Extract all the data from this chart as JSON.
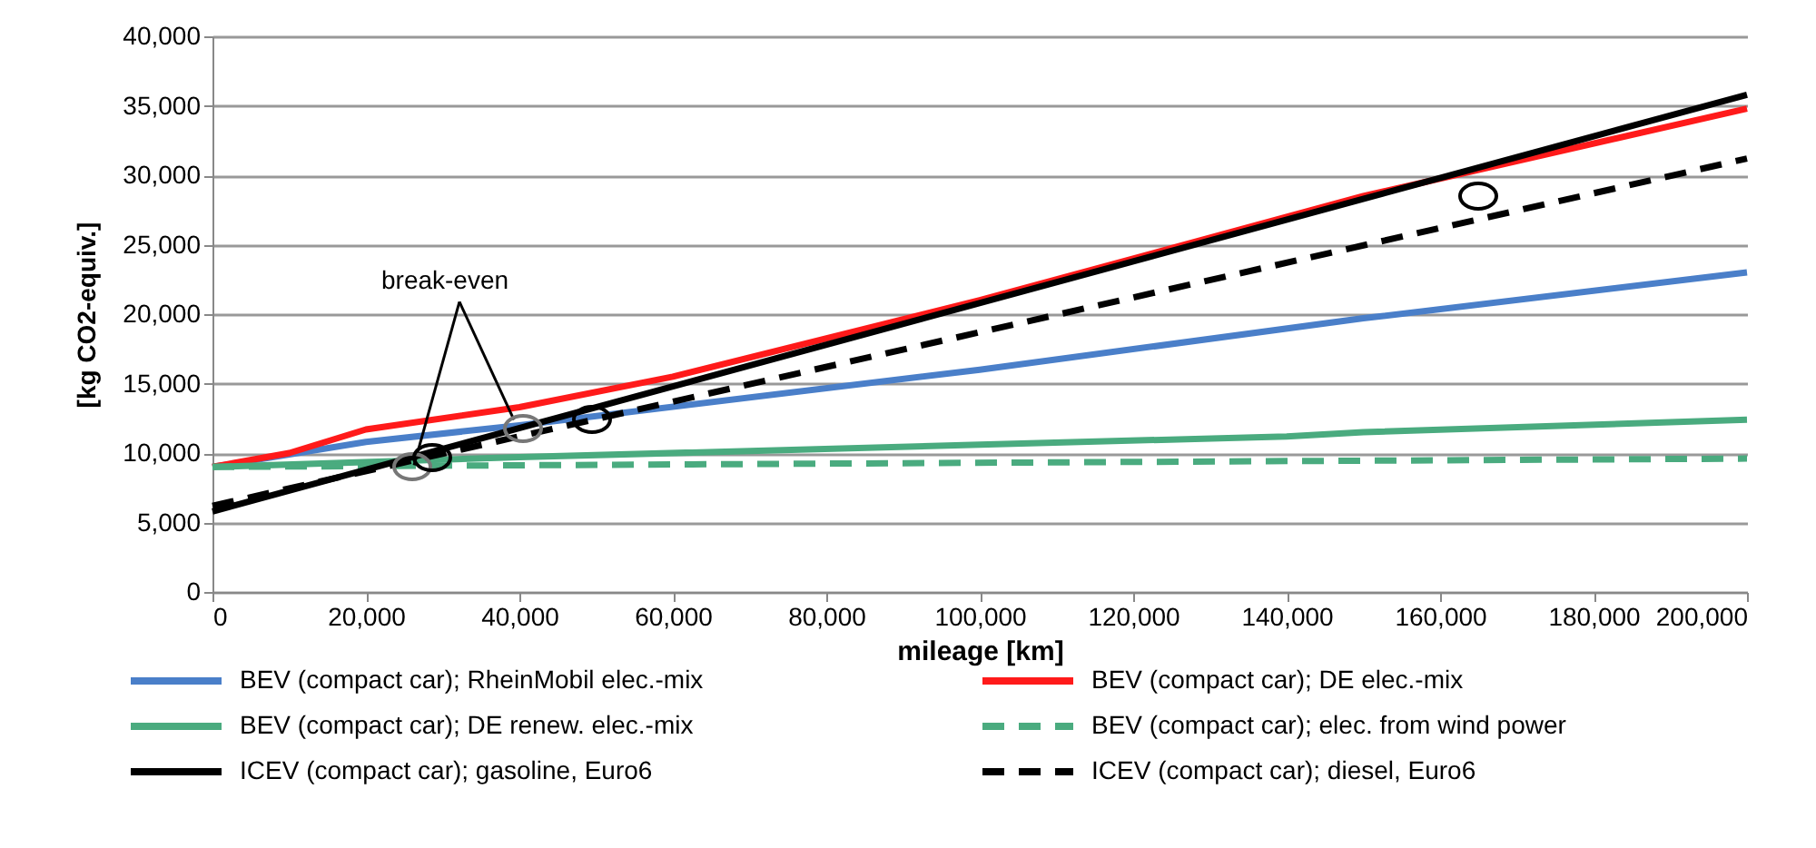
{
  "chart_data": {
    "type": "line",
    "xlabel": "mileage [km]",
    "ylabel": "[kg CO2-equiv.]",
    "xlim": [
      0,
      200000
    ],
    "xticks": [
      0,
      {
        "value": 20000,
        "label": "20,000"
      },
      {
        "value": 40000,
        "label": "40,000"
      },
      {
        "value": 60000,
        "label": "60,000"
      },
      {
        "value": 80000,
        "label": "80,000"
      },
      {
        "value": 100000,
        "label": "100,000"
      },
      {
        "value": 120000,
        "label": "120,000"
      },
      {
        "value": 140000,
        "label": "140,000"
      },
      {
        "value": 160000,
        "label": "160,000"
      },
      {
        "value": 180000,
        "label": "180,000"
      },
      {
        "value": 200000,
        "label": "200,000"
      }
    ],
    "ylim": [
      0,
      40000
    ],
    "yticks": [
      0,
      {
        "value": 5000,
        "label": "5,000"
      },
      {
        "value": 10000,
        "label": "10,000"
      },
      {
        "value": 15000,
        "label": "15,000"
      },
      {
        "value": 20000,
        "label": "20,000"
      },
      {
        "value": 25000,
        "label": "25,000"
      },
      {
        "value": 30000,
        "label": "30,000"
      },
      {
        "value": 35000,
        "label": "35,000"
      },
      {
        "value": 40000,
        "label": "40,000"
      }
    ],
    "grid": "y",
    "legend": "bottom",
    "annotations": [
      {
        "text": "break-even",
        "x": 40000,
        "y": 12000
      }
    ],
    "series": [
      {
        "name": "BEV (compact car); RheinMobil elec.-mix",
        "color": "#4a7fc9",
        "line_style": "solid",
        "x": [
          0,
          20000,
          40000,
          100000,
          150000,
          200000
        ],
        "values": [
          9000,
          10800,
          12000,
          16000,
          19700,
          23000
        ]
      },
      {
        "name": "BEV (compact car); DE elec.-mix",
        "color": "#ff1a1a",
        "line_style": "solid",
        "x": [
          0,
          10000,
          20000,
          40000,
          60000,
          100000,
          150000,
          200000
        ],
        "values": [
          9000,
          10000,
          11700,
          13300,
          15500,
          21000,
          28500,
          34800
        ]
      },
      {
        "name": "BEV (compact car); DE renew. elec.-mix",
        "color": "#4aab7f",
        "line_style": "solid",
        "x": [
          0,
          40000,
          100000,
          140000,
          150000,
          200000
        ],
        "values": [
          9000,
          9700,
          10600,
          11200,
          11500,
          12400
        ]
      },
      {
        "name": "BEV (compact car);  elec. from wind power",
        "color": "#4aab7f",
        "line_style": "dashed",
        "x": [
          0,
          200000
        ],
        "values": [
          9000,
          9600
        ]
      },
      {
        "name": "ICEV (compact car); gasoline, Euro6",
        "color": "#000000",
        "line_style": "solid",
        "x": [
          0,
          200000
        ],
        "values": [
          5800,
          35800
        ]
      },
      {
        "name": "ICEV (compact car); diesel, Euro6",
        "color": "#000000",
        "line_style": "dashed",
        "x": [
          0,
          200000
        ],
        "values": [
          6200,
          31200
        ]
      }
    ]
  }
}
